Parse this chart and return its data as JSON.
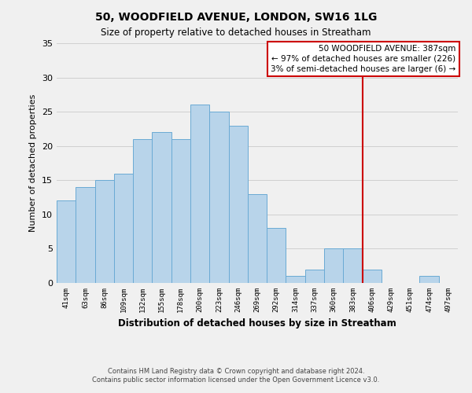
{
  "title": "50, WOODFIELD AVENUE, LONDON, SW16 1LG",
  "subtitle": "Size of property relative to detached houses in Streatham",
  "xlabel": "Distribution of detached houses by size in Streatham",
  "ylabel": "Number of detached properties",
  "footer_lines": [
    "Contains HM Land Registry data © Crown copyright and database right 2024.",
    "Contains public sector information licensed under the Open Government Licence v3.0."
  ],
  "bin_labels": [
    "41sqm",
    "63sqm",
    "86sqm",
    "109sqm",
    "132sqm",
    "155sqm",
    "178sqm",
    "200sqm",
    "223sqm",
    "246sqm",
    "269sqm",
    "292sqm",
    "314sqm",
    "337sqm",
    "360sqm",
    "383sqm",
    "406sqm",
    "429sqm",
    "451sqm",
    "474sqm",
    "497sqm"
  ],
  "bar_heights": [
    12,
    14,
    15,
    16,
    21,
    22,
    21,
    26,
    25,
    23,
    13,
    8,
    1,
    2,
    5,
    5,
    2,
    0,
    0,
    1,
    0
  ],
  "bar_color": "#b8d4ea",
  "bar_edge_color": "#6aaad4",
  "grid_color": "#d0d0d0",
  "vline_x_index": 15,
  "vline_color": "#cc0000",
  "annotation_box_text": "50 WOODFIELD AVENUE: 387sqm\n← 97% of detached houses are smaller (226)\n3% of semi-detached houses are larger (6) →",
  "annotation_box_edge_color": "#cc0000",
  "annotation_box_face_color": "#ffffff",
  "ylim": [
    0,
    35
  ],
  "yticks": [
    0,
    5,
    10,
    15,
    20,
    25,
    30,
    35
  ],
  "background_color": "#f0f0f0"
}
